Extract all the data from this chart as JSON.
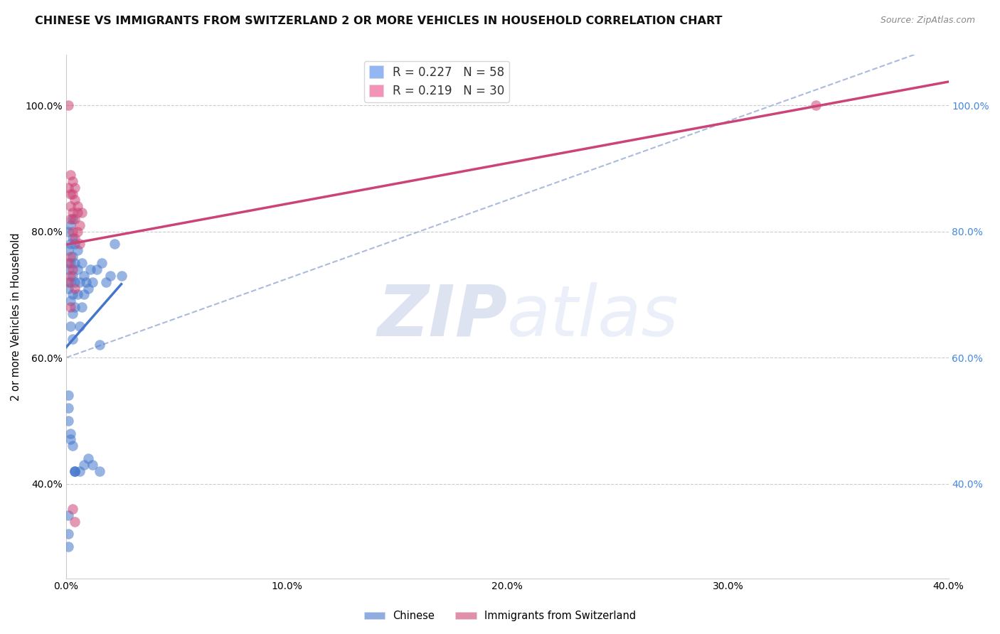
{
  "title": "CHINESE VS IMMIGRANTS FROM SWITZERLAND 2 OR MORE VEHICLES IN HOUSEHOLD CORRELATION CHART",
  "source": "Source: ZipAtlas.com",
  "ylabel": "2 or more Vehicles in Household",
  "watermark": "ZIPatlas",
  "legend": [
    {
      "label": "R = 0.227   N = 58",
      "color": "#6699ee"
    },
    {
      "label": "R = 0.219   N = 30",
      "color": "#ee6699"
    }
  ],
  "xlim": [
    0.0,
    0.4
  ],
  "ylim": [
    0.25,
    1.08
  ],
  "xtick_labels": [
    "0.0%",
    "10.0%",
    "20.0%",
    "30.0%",
    "40.0%"
  ],
  "xtick_vals": [
    0.0,
    0.1,
    0.2,
    0.3,
    0.4
  ],
  "ytick_labels": [
    "40.0%",
    "60.0%",
    "80.0%",
    "100.0%"
  ],
  "ytick_vals": [
    0.4,
    0.6,
    0.8,
    1.0
  ],
  "chinese_scatter": [
    [
      0.001,
      0.71
    ],
    [
      0.001,
      0.74
    ],
    [
      0.001,
      0.77
    ],
    [
      0.001,
      0.8
    ],
    [
      0.002,
      0.65
    ],
    [
      0.002,
      0.69
    ],
    [
      0.002,
      0.72
    ],
    [
      0.002,
      0.75
    ],
    [
      0.002,
      0.78
    ],
    [
      0.002,
      0.81
    ],
    [
      0.003,
      0.63
    ],
    [
      0.003,
      0.67
    ],
    [
      0.003,
      0.7
    ],
    [
      0.003,
      0.73
    ],
    [
      0.003,
      0.76
    ],
    [
      0.003,
      0.79
    ],
    [
      0.003,
      0.82
    ],
    [
      0.004,
      0.68
    ],
    [
      0.004,
      0.72
    ],
    [
      0.004,
      0.75
    ],
    [
      0.004,
      0.78
    ],
    [
      0.005,
      0.7
    ],
    [
      0.005,
      0.74
    ],
    [
      0.005,
      0.77
    ],
    [
      0.006,
      0.65
    ],
    [
      0.006,
      0.72
    ],
    [
      0.007,
      0.68
    ],
    [
      0.007,
      0.75
    ],
    [
      0.008,
      0.7
    ],
    [
      0.008,
      0.73
    ],
    [
      0.009,
      0.72
    ],
    [
      0.01,
      0.71
    ],
    [
      0.011,
      0.74
    ],
    [
      0.012,
      0.72
    ],
    [
      0.014,
      0.74
    ],
    [
      0.015,
      0.62
    ],
    [
      0.016,
      0.75
    ],
    [
      0.018,
      0.72
    ],
    [
      0.02,
      0.73
    ],
    [
      0.022,
      0.78
    ],
    [
      0.025,
      0.73
    ],
    [
      0.001,
      0.5
    ],
    [
      0.001,
      0.52
    ],
    [
      0.001,
      0.54
    ],
    [
      0.002,
      0.47
    ],
    [
      0.002,
      0.48
    ],
    [
      0.003,
      0.46
    ],
    [
      0.001,
      0.32
    ],
    [
      0.001,
      0.35
    ],
    [
      0.001,
      0.3
    ],
    [
      0.004,
      0.42
    ],
    [
      0.004,
      0.42
    ],
    [
      0.004,
      0.42
    ],
    [
      0.006,
      0.42
    ],
    [
      0.008,
      0.43
    ],
    [
      0.01,
      0.44
    ],
    [
      0.012,
      0.43
    ],
    [
      0.015,
      0.42
    ]
  ],
  "swiss_scatter": [
    [
      0.001,
      1.0
    ],
    [
      0.001,
      0.87
    ],
    [
      0.002,
      0.84
    ],
    [
      0.002,
      0.86
    ],
    [
      0.002,
      0.89
    ],
    [
      0.002,
      0.82
    ],
    [
      0.003,
      0.83
    ],
    [
      0.003,
      0.86
    ],
    [
      0.003,
      0.8
    ],
    [
      0.003,
      0.88
    ],
    [
      0.004,
      0.82
    ],
    [
      0.004,
      0.85
    ],
    [
      0.004,
      0.79
    ],
    [
      0.004,
      0.87
    ],
    [
      0.005,
      0.83
    ],
    [
      0.005,
      0.8
    ],
    [
      0.005,
      0.84
    ],
    [
      0.006,
      0.81
    ],
    [
      0.006,
      0.78
    ],
    [
      0.007,
      0.83
    ],
    [
      0.001,
      0.72
    ],
    [
      0.001,
      0.75
    ],
    [
      0.002,
      0.76
    ],
    [
      0.002,
      0.73
    ],
    [
      0.003,
      0.74
    ],
    [
      0.004,
      0.71
    ],
    [
      0.002,
      0.68
    ],
    [
      0.003,
      0.36
    ],
    [
      0.004,
      0.34
    ],
    [
      0.34,
      1.0
    ]
  ],
  "chinese_line_color": "#4477cc",
  "swiss_line_color": "#cc4477",
  "diag_line_color": "#aabbdd",
  "background_color": "#ffffff",
  "grid_color": "#cccccc",
  "scatter_alpha": 0.55,
  "scatter_size": 110,
  "title_fontsize": 11.5,
  "axis_fontsize": 10.5,
  "tick_fontsize": 10,
  "legend_fontsize": 12,
  "right_tick_color": "#4488dd"
}
